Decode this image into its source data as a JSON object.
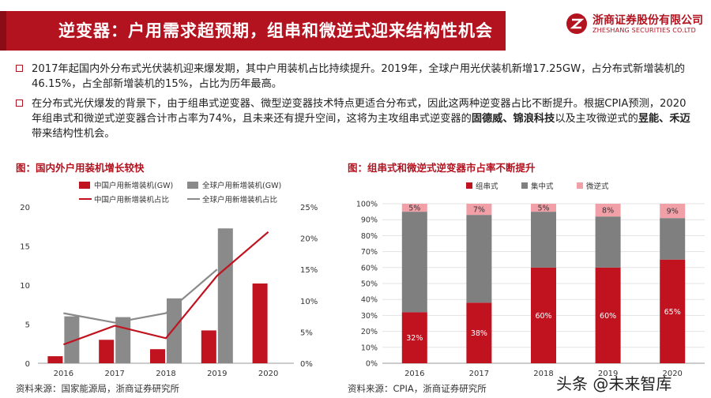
{
  "header": {
    "title": "逆变器：户用需求超预期，组串和微逆式迎来结构性机会",
    "logo_cn": "浙商证券股份有限公司",
    "logo_en": "ZHESHANG SECURITIES CO.LTD"
  },
  "bullets": [
    {
      "parts": [
        {
          "text": "2017年起国内外分布式光伏装机迎来爆发期，其中户用装机占比持续提升。2019年，全球户用光伏装机新增17.25GW，占分布式新增装机的46.15%，占全部新增装机的15%，占比为历年最高。",
          "bold": false
        }
      ]
    },
    {
      "parts": [
        {
          "text": "在分布式光伏爆发的背景下，由于组串式逆变器、微型逆变器技术特点更适合分布式，因此这两种逆变器占比不断提升。根据CPIA预测，2020年组串式和微逆式逆变器合计市占率为74%，且未来还有提升空间，这将为主攻组串式逆变器的",
          "bold": false
        },
        {
          "text": "固德威、锦浪科技",
          "bold": true
        },
        {
          "text": "以及主攻微逆式的",
          "bold": false
        },
        {
          "text": "昱能、禾迈",
          "bold": true
        },
        {
          "text": "带来结构性机会。",
          "bold": false
        }
      ]
    }
  ],
  "figures": {
    "left_title": "图：国内外户用装机增长较快",
    "right_title": "图：组串式和微逆式逆变器市占率不断提升",
    "left_source": "资料来源：国家能源局，浙商证券研究所",
    "right_source": "资料来源：CPIA，浙商证券研究所"
  },
  "watermark": "头条 @未来智库",
  "colors": {
    "brand_red": "#b3121f",
    "china_bar": "#c0121f",
    "global_bar": "#8a8a8a",
    "micro_bar": "#f2a0a8"
  },
  "chart_data": [
    {
      "type": "bar",
      "categories": [
        "2016",
        "2017",
        "2018",
        "2019",
        "2020"
      ],
      "series": [
        {
          "name": "中国户用新增装机(GW)",
          "kind": "bar",
          "axis": "left",
          "color": "#c0121f",
          "values": [
            0.9,
            3.0,
            1.8,
            4.2,
            10.2
          ]
        },
        {
          "name": "全球户用新增装机(GW)",
          "kind": "bar",
          "axis": "left",
          "color": "#8a8a8a",
          "values": [
            6.0,
            5.9,
            8.3,
            17.25,
            null
          ]
        },
        {
          "name": "中国户用新增装机占比",
          "kind": "line",
          "axis": "right",
          "color": "#c0121f",
          "values": [
            0.03,
            0.06,
            0.04,
            0.14,
            0.21
          ]
        },
        {
          "name": "全球户用新增装机占比",
          "kind": "line",
          "axis": "right",
          "color": "#8a8a8a",
          "values": [
            0.08,
            0.065,
            0.08,
            0.15,
            null
          ]
        }
      ],
      "ylim": [
        0,
        20
      ],
      "yticks": [
        "0",
        "5",
        "10",
        "15",
        "20"
      ],
      "y2lim": [
        0,
        0.25
      ],
      "y2ticks": [
        "0%",
        "5%",
        "10%",
        "15%",
        "20%",
        "25%"
      ],
      "legend": "top",
      "grid": false
    },
    {
      "type": "bar",
      "stacked": true,
      "categories": [
        "2016",
        "2017",
        "2018",
        "2019",
        "2020"
      ],
      "series": [
        {
          "name": "组串式",
          "color": "#c0121f",
          "values": [
            32,
            38,
            60,
            60,
            65
          ],
          "labels": [
            "32%",
            "38%",
            "60%",
            "60%",
            "65%"
          ]
        },
        {
          "name": "集中式",
          "color": "#7f7f7f",
          "values": [
            63,
            55,
            35,
            32,
            26
          ],
          "labels": []
        },
        {
          "name": "微逆式",
          "color": "#f2a0a8",
          "values": [
            5,
            7,
            5,
            8,
            9
          ],
          "labels": [
            "5%",
            "7%",
            "5%",
            "8%",
            "9%"
          ]
        }
      ],
      "ylim": [
        0,
        100
      ],
      "yticks": [
        "0%",
        "10%",
        "20%",
        "30%",
        "40%",
        "50%",
        "60%",
        "70%",
        "80%",
        "90%",
        "100%"
      ],
      "legend": "top",
      "grid": true
    }
  ]
}
